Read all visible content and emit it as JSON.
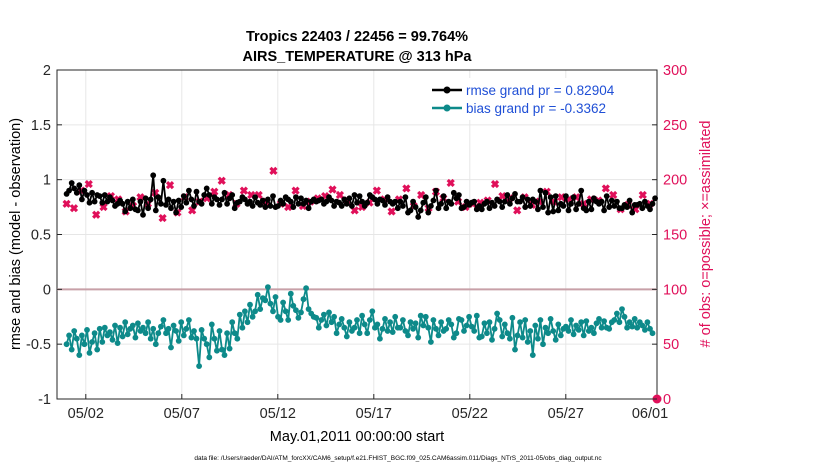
{
  "chart_data": {
    "type": "line",
    "title_line1": "Tropics 22403 / 22456 = 99.764%",
    "title_line2": "AIRS_TEMPERATURE @ 313 hPa",
    "xlabel": "May.01,2011 00:00:00 start",
    "ylabel_left": "rmse and bias (model - observation)",
    "ylabel_right": "# of obs: o=possible; ×=assimilated",
    "footer": "data file: /Users/raeder/DAI/ATM_forcXX/CAM6_setup/f.e21.FHIST_BGC.f09_025.CAM6assim.011/Diags_NTrS_2011-05/obs_diag_output.nc",
    "xlim": [
      0.5,
      31.75
    ],
    "ylim_left": [
      -1,
      2
    ],
    "ylim_right": [
      0,
      300
    ],
    "x_ticks": [
      {
        "value": 2,
        "label": "05/02"
      },
      {
        "value": 7,
        "label": "05/07"
      },
      {
        "value": 12,
        "label": "05/12"
      },
      {
        "value": 17,
        "label": "05/17"
      },
      {
        "value": 22,
        "label": "05/22"
      },
      {
        "value": 27,
        "label": "05/27"
      },
      {
        "value": 32,
        "label": "06/01"
      }
    ],
    "y_ticks_left": [
      "-1",
      "-0.5",
      "0",
      "0.5",
      "1",
      "1.5",
      "2"
    ],
    "y_ticks_right": [
      "0",
      "50",
      "100",
      "150",
      "200",
      "250",
      "300"
    ],
    "legend": [
      {
        "label": "rmse grand pr = 0.82904",
        "color": "#000000"
      },
      {
        "label": "bias grand pr = -0.3362",
        "color": "#008080"
      }
    ],
    "colors": {
      "rmse": "#000000",
      "bias": "#0d8a8a",
      "obs": "#e0105a",
      "zero_line": "#c8a0a8",
      "grid": "#e6e6e6",
      "legend_text": "#1f4fd6"
    },
    "series": [
      {
        "name": "rmse",
        "values": [
          0.87,
          0.9,
          0.97,
          0.92,
          0.88,
          0.95,
          0.82,
          0.9,
          0.86,
          0.79,
          0.88,
          0.8,
          0.86,
          0.85,
          0.79,
          0.86,
          0.8,
          0.84,
          0.81,
          0.76,
          0.78,
          0.81,
          0.78,
          0.71,
          0.8,
          0.74,
          0.82,
          0.73,
          0.72,
          0.8,
          0.68,
          0.83,
          0.74,
          0.82,
          1.04,
          0.72,
          0.84,
          0.78,
          0.99,
          0.77,
          0.82,
          0.74,
          0.8,
          0.7,
          0.81,
          0.75,
          0.85,
          0.79,
          0.9,
          0.82,
          0.76,
          0.89,
          0.8,
          0.78,
          0.86,
          0.92,
          0.86,
          0.78,
          0.84,
          0.82,
          0.77,
          0.82,
          0.88,
          0.78,
          0.83,
          0.86,
          0.74,
          0.79,
          0.8,
          0.84,
          0.82,
          0.78,
          0.8,
          0.76,
          0.84,
          0.79,
          0.77,
          0.81,
          0.75,
          0.82,
          0.76,
          0.85,
          0.75,
          0.76,
          0.81,
          0.78,
          0.84,
          0.82,
          0.8,
          0.75,
          0.84,
          0.78,
          0.83,
          0.78,
          0.81,
          0.74,
          0.8,
          0.82,
          0.8,
          0.81,
          0.82,
          0.78,
          0.8,
          0.84,
          0.81,
          0.76,
          0.8,
          0.79,
          0.76,
          0.82,
          0.78,
          0.83,
          0.76,
          0.86,
          0.79,
          0.85,
          0.8,
          0.76,
          0.79,
          0.86,
          0.84,
          0.82,
          0.78,
          0.82,
          0.81,
          0.77,
          0.84,
          0.8,
          0.78,
          0.8,
          0.74,
          0.8,
          0.76,
          0.84,
          0.7,
          0.72,
          0.8,
          0.75,
          0.66,
          0.72,
          0.79,
          0.84,
          0.7,
          0.76,
          0.81,
          0.9,
          0.74,
          0.78,
          0.85,
          0.74,
          0.8,
          0.78,
          0.88,
          0.83,
          0.86,
          0.74,
          0.75,
          0.8,
          0.77,
          0.79,
          0.8,
          0.73,
          0.76,
          0.73,
          0.78,
          0.8,
          0.74,
          0.79,
          0.76,
          0.82,
          0.8,
          0.75,
          0.8,
          0.86,
          0.78,
          0.83,
          0.87,
          0.8,
          0.8,
          0.84,
          0.75,
          0.82,
          0.76,
          0.82,
          0.8,
          0.73,
          0.9,
          0.75,
          0.88,
          0.7,
          0.84,
          0.71,
          0.85,
          0.72,
          0.78,
          0.76,
          0.85,
          0.72,
          0.78,
          0.84,
          0.73,
          0.78,
          0.9,
          0.74,
          0.72,
          0.8,
          0.73,
          0.83,
          0.8,
          0.78,
          0.8,
          0.72,
          0.85,
          0.75,
          0.81,
          0.76,
          0.8,
          0.74,
          0.74,
          0.77,
          0.75,
          0.81,
          0.7,
          0.77,
          0.77,
          0.78,
          0.74,
          0.8,
          0.76,
          0.73,
          0.78,
          0.83
        ]
      },
      {
        "name": "bias",
        "values": [
          -0.5,
          -0.42,
          -0.55,
          -0.38,
          -0.45,
          -0.6,
          -0.42,
          -0.5,
          -0.37,
          -0.58,
          -0.48,
          -0.4,
          -0.55,
          -0.36,
          -0.48,
          -0.35,
          -0.42,
          -0.39,
          -0.46,
          -0.33,
          -0.49,
          -0.35,
          -0.43,
          -0.3,
          -0.41,
          -0.36,
          -0.33,
          -0.44,
          -0.31,
          -0.38,
          -0.35,
          -0.4,
          -0.3,
          -0.45,
          -0.36,
          -0.5,
          -0.4,
          -0.34,
          -0.28,
          -0.4,
          -0.36,
          -0.53,
          -0.33,
          -0.38,
          -0.47,
          -0.3,
          -0.42,
          -0.36,
          -0.28,
          -0.44,
          -0.38,
          -0.45,
          -0.7,
          -0.37,
          -0.45,
          -0.5,
          -0.62,
          -0.32,
          -0.45,
          -0.56,
          -0.38,
          -0.55,
          -0.6,
          -0.4,
          -0.54,
          -0.3,
          -0.4,
          -0.45,
          -0.23,
          -0.35,
          -0.2,
          -0.3,
          -0.14,
          -0.25,
          -0.2,
          -0.05,
          -0.18,
          -0.08,
          -0.1,
          0.02,
          -0.13,
          -0.2,
          -0.07,
          -0.25,
          -0.28,
          -0.12,
          -0.2,
          -0.28,
          -0.04,
          -0.15,
          -0.19,
          -0.26,
          -0.21,
          -0.09,
          0.01,
          -0.18,
          -0.22,
          -0.25,
          -0.26,
          -0.35,
          -0.28,
          -0.23,
          -0.33,
          -0.21,
          -0.3,
          -0.25,
          -0.4,
          -0.32,
          -0.27,
          -0.35,
          -0.43,
          -0.3,
          -0.38,
          -0.35,
          -0.28,
          -0.4,
          -0.24,
          -0.32,
          -0.4,
          -0.28,
          -0.2,
          -0.35,
          -0.32,
          -0.45,
          -0.36,
          -0.27,
          -0.38,
          -0.3,
          -0.39,
          -0.25,
          -0.35,
          -0.35,
          -0.28,
          -0.38,
          -0.42,
          -0.3,
          -0.36,
          -0.31,
          -0.44,
          -0.24,
          -0.33,
          -0.25,
          -0.35,
          -0.48,
          -0.28,
          -0.36,
          -0.42,
          -0.3,
          -0.38,
          -0.36,
          -0.28,
          -0.32,
          -0.44,
          -0.4,
          -0.27,
          -0.28,
          -0.38,
          -0.33,
          -0.25,
          -0.34,
          -0.38,
          -0.24,
          -0.44,
          -0.43,
          -0.31,
          -0.4,
          -0.3,
          -0.46,
          -0.36,
          -0.22,
          -0.28,
          -0.43,
          -0.32,
          -0.4,
          -0.45,
          -0.26,
          -0.55,
          -0.42,
          -0.3,
          -0.44,
          -0.28,
          -0.48,
          -0.38,
          -0.6,
          -0.33,
          -0.45,
          -0.28,
          -0.5,
          -0.35,
          -0.4,
          -0.27,
          -0.38,
          -0.46,
          -0.32,
          -0.42,
          -0.36,
          -0.34,
          -0.38,
          -0.28,
          -0.41,
          -0.33,
          -0.37,
          -0.3,
          -0.42,
          -0.29,
          -0.38,
          -0.35,
          -0.4,
          -0.31,
          -0.27,
          -0.35,
          -0.29,
          -0.35,
          -0.36,
          -0.3,
          -0.28,
          -0.22,
          -0.3,
          -0.18,
          -0.25,
          -0.35,
          -0.3,
          -0.34,
          -0.27,
          -0.35,
          -0.3,
          -0.33,
          -0.37,
          -0.3,
          -0.36,
          -0.4
        ]
      },
      {
        "name": "obs_assimilated",
        "values": [
          178,
          170,
          186,
          174,
          192,
          172,
          190,
          183,
          166,
          196,
          175,
          188,
          168,
          193,
          179,
          175,
          186,
          163,
          185,
          177,
          172,
          182,
          194,
          165,
          171,
          190,
          166,
          176,
          206,
          170,
          184,
          189,
          168,
          178,
          191,
          180,
          188,
          174,
          186,
          165,
          182,
          174,
          195,
          187,
          178,
          170,
          190,
          182,
          184,
          175,
          190,
          172,
          194,
          170,
          180,
          183,
          191,
          183,
          175,
          176,
          189,
          192,
          195,
          199,
          192,
          180,
          186,
          178,
          173,
          178,
          182,
          183,
          190,
          187,
          195,
          186,
          186,
          190,
          186,
          172,
          186,
          180,
          176,
          183,
          208,
          180,
          184,
          178,
          176,
          182,
          175,
          196,
          183,
          190,
          184,
          173,
          176,
          186,
          182,
          180,
          178,
          163,
          183,
          175,
          170,
          185,
          160,
          178,
          191,
          183,
          178,
          186,
          177,
          174,
          181,
          194,
          183,
          172,
          184,
          186,
          175,
          173,
          181,
          179,
          187,
          176,
          190,
          178,
          168,
          182,
          173,
          189,
          171,
          185,
          188,
          182,
          178,
          175,
          192,
          171,
          194,
          176,
          183,
          182,
          186,
          189,
          180,
          174,
          188,
          184,
          189,
          176,
          179,
          183,
          176,
          181,
          197,
          187,
          172,
          180,
          183,
          196,
          175,
          184,
          184,
          178,
          186,
          190,
          179,
          180,
          173,
          181,
          184,
          178,
          196,
          176,
          182,
          185,
          175,
          188,
          183,
          178,
          185,
          172,
          190,
          167,
          184,
          193,
          189,
          177,
          182,
          182,
          180,
          178,
          182,
          189,
          171,
          183,
          180,
          166,
          179,
          184,
          181,
          195,
          182,
          172,
          170,
          184,
          180,
          164,
          178,
          186,
          173,
          182,
          188,
          178,
          181,
          186,
          183,
          192,
          184,
          178,
          186,
          182,
          189,
          173,
          190,
          178,
          177,
          193,
          178,
          173,
          182,
          179,
          186,
          176,
          176,
          178,
          174,
          186
        ]
      }
    ]
  }
}
